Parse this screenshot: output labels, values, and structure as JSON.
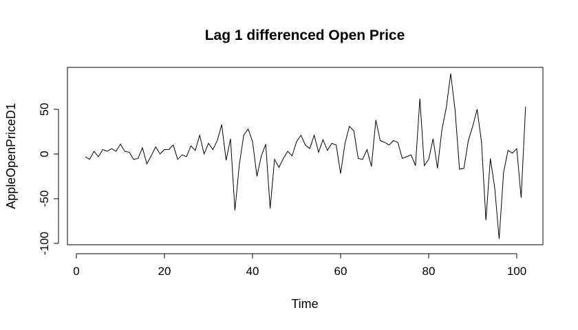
{
  "chart_data": {
    "type": "line",
    "title": "Lag 1 differenced Open Price",
    "xlabel": "Time",
    "ylabel": "AppleOpenPriceD1",
    "xlim": [
      0,
      105
    ],
    "ylim": [
      -100,
      95
    ],
    "xticks": [
      0,
      20,
      40,
      60,
      80,
      100
    ],
    "yticks": [
      -100,
      -50,
      0,
      50
    ],
    "grid": false,
    "legend": "none",
    "series": [
      {
        "x": [
          2,
          3,
          4,
          5,
          6,
          7,
          8,
          9,
          10,
          11,
          12,
          13,
          14,
          15,
          16,
          17,
          18,
          19,
          20,
          21,
          22,
          23,
          24,
          25,
          26,
          27,
          28,
          29,
          30,
          31,
          32,
          33,
          34,
          35,
          36,
          37,
          38,
          39,
          40,
          41,
          42,
          43,
          44,
          45,
          46,
          47,
          48,
          49,
          50,
          51,
          52,
          53,
          54,
          55,
          56,
          57,
          58,
          59,
          60,
          61,
          62,
          63,
          64,
          65,
          66,
          67,
          68,
          69,
          70,
          71,
          72,
          73,
          74,
          75,
          76,
          77,
          78,
          79,
          80,
          81,
          82,
          83,
          84,
          85,
          86,
          87,
          88,
          89,
          90,
          91,
          92,
          93,
          94,
          95,
          96,
          97,
          98,
          99,
          100,
          101,
          102
        ],
        "values": [
          -3,
          -6,
          3,
          -3,
          5,
          3,
          6,
          3,
          11,
          3,
          2,
          -6,
          -5,
          7,
          -11,
          -2,
          8,
          0,
          5,
          5,
          10,
          -6,
          -1,
          -3,
          9,
          4,
          21,
          0,
          12,
          5,
          15,
          33,
          -7,
          17,
          -63,
          -12,
          21,
          28,
          14,
          -25,
          -2,
          11,
          -61,
          -6,
          -15,
          -5,
          3,
          -2,
          14,
          21,
          10,
          6,
          21,
          2,
          16,
          4,
          12,
          10,
          -22,
          12,
          31,
          26,
          -5,
          -6,
          5,
          -14,
          38,
          15,
          13,
          10,
          15,
          13,
          -5,
          -3,
          -1,
          -13,
          62,
          -13,
          -6,
          17,
          -16,
          27,
          52,
          90,
          49,
          -17,
          -16,
          15,
          31,
          50,
          13,
          -74,
          -5,
          -38,
          -95,
          -21,
          4,
          1,
          6,
          -49,
          53
        ]
      }
    ]
  }
}
